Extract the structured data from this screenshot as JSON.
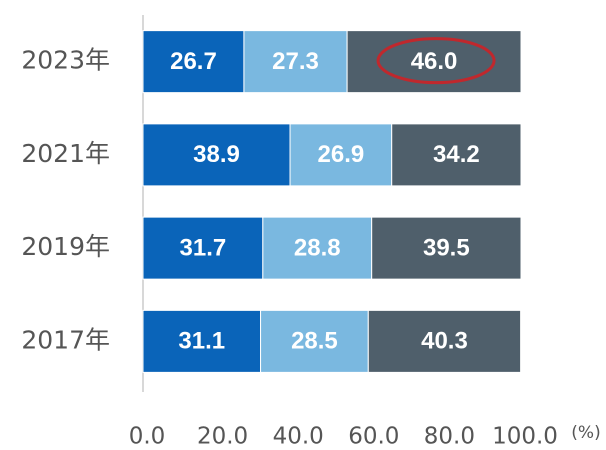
{
  "chart_data": {
    "type": "stacked_barh",
    "categories": [
      "2023年",
      "2021年",
      "2019年",
      "2017年"
    ],
    "series": [
      {
        "color": "#0a64b9",
        "values": [
          26.7,
          38.9,
          31.7,
          31.1
        ]
      },
      {
        "color": "#7ab8e0",
        "values": [
          27.3,
          26.9,
          28.8,
          28.5
        ]
      },
      {
        "color": "#4f5f6b",
        "values": [
          46.0,
          34.2,
          39.5,
          40.3
        ],
        "value_labels": [
          "46.0",
          "34.2",
          "39.5",
          "40.3"
        ]
      }
    ],
    "xlim": [
      0,
      100
    ],
    "xticks": [
      {
        "value": 0,
        "label": "0.0"
      },
      {
        "value": 20,
        "label": "20.0"
      },
      {
        "value": 40,
        "label": "40.0"
      },
      {
        "value": 60,
        "label": "60.0"
      },
      {
        "value": 80,
        "label": "80.0"
      },
      {
        "value": 100,
        "label": "100.0"
      }
    ],
    "x_label": "(%)"
  }
}
